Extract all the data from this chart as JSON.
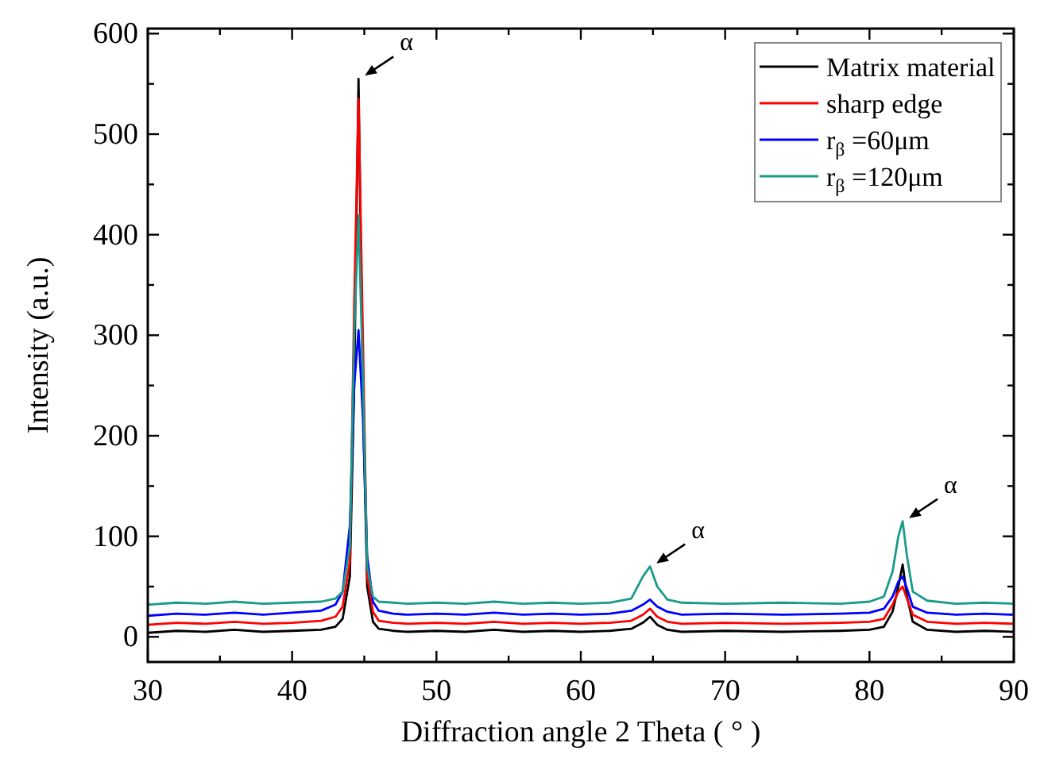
{
  "chart_data": {
    "type": "line",
    "xlabel": "Diffraction angle 2 Theta ( ° )",
    "ylabel": "Intensity (a.u.)",
    "xlim": [
      30,
      90
    ],
    "ylim": [
      -25,
      605
    ],
    "xticks": [
      30,
      {
        "value": 35,
        "label": null
      },
      40,
      {
        "value": 45,
        "label": null
      },
      50,
      {
        "value": 55,
        "label": null
      },
      60,
      {
        "value": 65,
        "label": null
      },
      70,
      {
        "value": 75,
        "label": null
      },
      80,
      {
        "value": 85,
        "label": null
      },
      90
    ],
    "yticks": [
      0,
      {
        "value": 50,
        "label": null
      },
      100,
      {
        "value": 150,
        "label": null
      },
      200,
      {
        "value": 250,
        "label": null
      },
      300,
      {
        "value": 350,
        "label": null
      },
      400,
      {
        "value": 450,
        "label": null
      },
      500,
      {
        "value": 550,
        "label": null
      },
      600
    ],
    "x": [
      30,
      32,
      34,
      36,
      38,
      40,
      42,
      43,
      43.5,
      44,
      44.3,
      44.6,
      44.9,
      45.2,
      45.6,
      46,
      47,
      48,
      50,
      52,
      54,
      56,
      58,
      60,
      62,
      63.5,
      64.3,
      64.8,
      65.3,
      66,
      67,
      70,
      74,
      78,
      80,
      81,
      81.6,
      82,
      82.3,
      82.6,
      83,
      84,
      86,
      88,
      90
    ],
    "series": [
      {
        "name": "Matrix material",
        "color": "#000000",
        "values": [
          4,
          6,
          5,
          7,
          5,
          6,
          7,
          10,
          18,
          60,
          250,
          555,
          240,
          50,
          15,
          8,
          6,
          5,
          6,
          5,
          7,
          5,
          6,
          5,
          6,
          8,
          14,
          20,
          12,
          7,
          5,
          6,
          5,
          6,
          7,
          10,
          25,
          50,
          72,
          40,
          15,
          7,
          5,
          6,
          5
        ]
      },
      {
        "name": "sharp edge",
        "color": "#ff0000",
        "values": [
          12,
          14,
          13,
          15,
          13,
          14,
          16,
          20,
          30,
          75,
          330,
          535,
          300,
          60,
          25,
          16,
          14,
          13,
          14,
          13,
          15,
          13,
          14,
          13,
          14,
          16,
          22,
          28,
          20,
          15,
          13,
          14,
          13,
          14,
          15,
          18,
          32,
          45,
          50,
          38,
          22,
          15,
          13,
          14,
          13
        ]
      },
      {
        "name": "r$_{β}$ =60μm",
        "color": "#0000ff",
        "values": [
          21,
          23,
          22,
          24,
          22,
          24,
          26,
          32,
          45,
          110,
          250,
          305,
          220,
          80,
          35,
          26,
          23,
          22,
          23,
          22,
          24,
          22,
          23,
          22,
          23,
          26,
          32,
          37,
          30,
          25,
          22,
          23,
          22,
          23,
          24,
          28,
          40,
          55,
          60,
          48,
          30,
          24,
          22,
          23,
          22
        ]
      },
      {
        "name": "r$_{β}$ =120μm",
        "color": "#1a9a8a",
        "values": [
          32,
          34,
          33,
          35,
          33,
          34,
          35,
          38,
          45,
          90,
          300,
          419,
          260,
          70,
          40,
          35,
          34,
          33,
          34,
          33,
          35,
          33,
          34,
          33,
          34,
          38,
          60,
          70,
          50,
          37,
          34,
          33,
          34,
          33,
          35,
          40,
          65,
          100,
          115,
          80,
          45,
          36,
          33,
          34,
          33
        ]
      }
    ],
    "annotations": [
      {
        "text": "α",
        "x": 44.6,
        "y": 555
      },
      {
        "text": "α",
        "x": 64.8,
        "y": 70
      },
      {
        "text": "α",
        "x": 82.3,
        "y": 115
      }
    ],
    "legend": "top right",
    "grid": false,
    "marker": "none",
    "line_style": "solid"
  }
}
